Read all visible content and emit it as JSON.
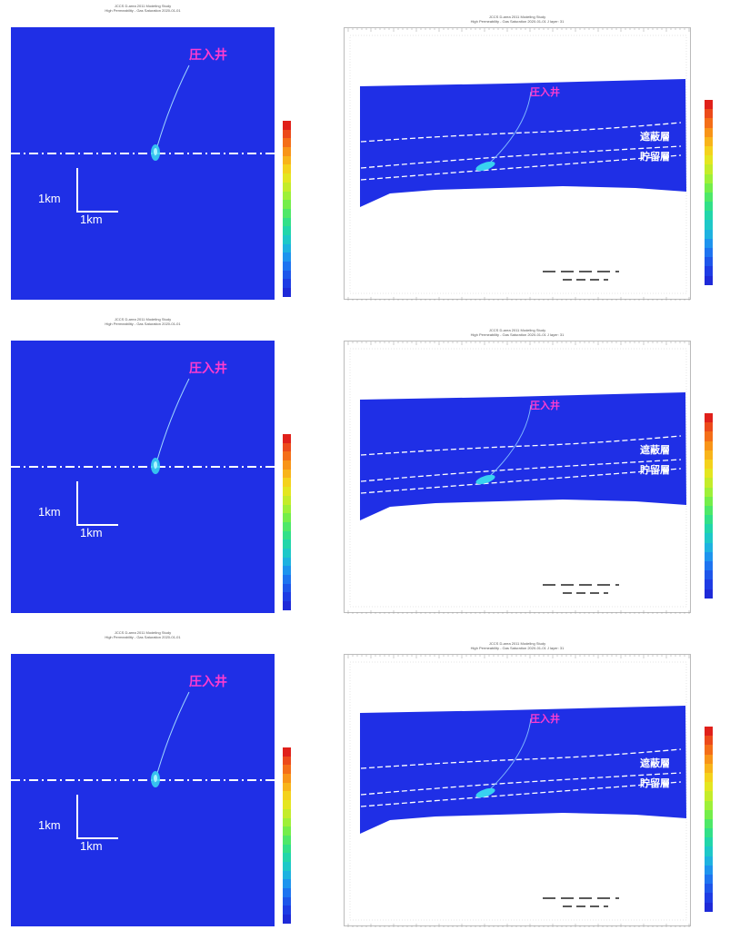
{
  "panels": [
    {
      "map_title": [
        "JCCS D-area 2011 Modeling Study",
        "High Permeability - Gas Saturation 2020-01-01"
      ],
      "section_title": [
        "JCCS D-area 2011 Modeling Study",
        "High Permeability - Gas Saturation 2020-01-01    J layer: 31"
      ]
    },
    {
      "map_title": [
        "JCCS D-area 2011 Modeling Study",
        "High Permeability - Gas Saturation 2020-01-01"
      ],
      "section_title": [
        "JCCS D-area 2011 Modeling Study",
        "High Permeability - Gas Saturation 2020-01-01    J layer: 31"
      ]
    },
    {
      "map_title": [
        "JCCS D-area 2011 Modeling Study",
        "High Permeability - Gas Saturation 2020-01-01"
      ],
      "section_title": [
        "JCCS D-area 2011 Modeling Study",
        "High Permeability - Gas Saturation 2020-01-01    J layer: 31"
      ]
    }
  ],
  "labels": {
    "injection_well": "圧入井",
    "caprock": "遮蔽層",
    "reservoir": "貯留層",
    "scale_vertical": "1km",
    "scale_horizontal": "1km"
  },
  "colorbar": {
    "colors": [
      "#e0201a",
      "#ec4a1a",
      "#f46e18",
      "#f89418",
      "#f8b41a",
      "#f4d21c",
      "#e4e620",
      "#c4ec2a",
      "#9ef038",
      "#74ee4a",
      "#4ee868",
      "#32e088",
      "#22d6aa",
      "#1ec8c8",
      "#1eb2e0",
      "#1e94ee",
      "#1e74f0",
      "#1e56ea",
      "#1e3ce4",
      "#1e2ad8"
    ]
  },
  "colors": {
    "field": "#1f2fe6",
    "well_label": "#ff3ccf",
    "plume": "#38d2f0"
  }
}
